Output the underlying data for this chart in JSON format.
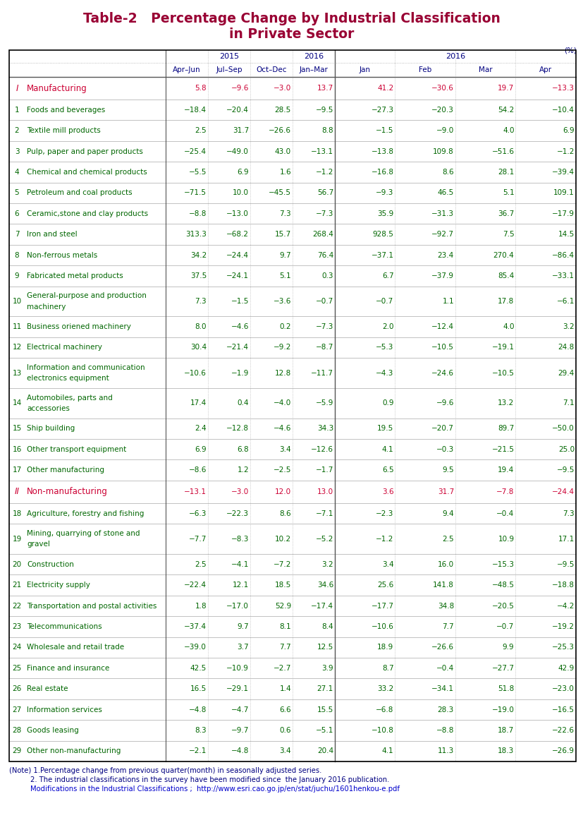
{
  "title_line1": "Table-2   Percentage Change by Industrial Classification",
  "title_line2": "in Private Sector",
  "title_color": "#990033",
  "unit_label": "(%)",
  "col_header_color": "#000080",
  "rows": [
    {
      "num": "I",
      "label": "Manufacturing",
      "values": [
        "5.8",
        "-9.6",
        "-3.0",
        "13.7",
        "41.2",
        "-30.6",
        "19.7",
        "-13.3"
      ],
      "label_color": "#cc0033",
      "value_color": "#cc0033",
      "is_section": true,
      "two_line": false
    },
    {
      "num": "1",
      "label": "Foods and beverages",
      "values": [
        "-18.4",
        "-20.4",
        "28.5",
        "-9.5",
        "-27.3",
        "-20.3",
        "54.2",
        "-10.4"
      ],
      "label_color": "#006600",
      "value_color": "#006600",
      "is_section": false,
      "two_line": false
    },
    {
      "num": "2",
      "label": "Textile mill products",
      "values": [
        "2.5",
        "31.7",
        "-26.6",
        "8.8",
        "-1.5",
        "-9.0",
        "4.0",
        "6.9"
      ],
      "label_color": "#006600",
      "value_color": "#006600",
      "is_section": false,
      "two_line": false
    },
    {
      "num": "3",
      "label": "Pulp, paper and paper products",
      "values": [
        "-25.4",
        "-49.0",
        "43.0",
        "-13.1",
        "-13.8",
        "109.8",
        "-51.6",
        "-1.2"
      ],
      "label_color": "#006600",
      "value_color": "#006600",
      "is_section": false,
      "two_line": false
    },
    {
      "num": "4",
      "label": "Chemical and chemical products",
      "values": [
        "-5.5",
        "6.9",
        "1.6",
        "-1.2",
        "-16.8",
        "8.6",
        "28.1",
        "-39.4"
      ],
      "label_color": "#006600",
      "value_color": "#006600",
      "is_section": false,
      "two_line": false
    },
    {
      "num": "5",
      "label": "Petroleum and coal products",
      "values": [
        "-71.5",
        "10.0",
        "-45.5",
        "56.7",
        "-9.3",
        "46.5",
        "5.1",
        "109.1"
      ],
      "label_color": "#006600",
      "value_color": "#006600",
      "is_section": false,
      "two_line": false
    },
    {
      "num": "6",
      "label": "Ceramic,stone and clay products",
      "values": [
        "-8.8",
        "-13.0",
        "7.3",
        "-7.3",
        "35.9",
        "-31.3",
        "36.7",
        "-17.9"
      ],
      "label_color": "#006600",
      "value_color": "#006600",
      "is_section": false,
      "two_line": false
    },
    {
      "num": "7",
      "label": "Iron and steel",
      "values": [
        "313.3",
        "-68.2",
        "15.7",
        "268.4",
        "928.5",
        "-92.7",
        "7.5",
        "14.5"
      ],
      "label_color": "#006600",
      "value_color": "#006600",
      "is_section": false,
      "two_line": false
    },
    {
      "num": "8",
      "label": "Non-ferrous metals",
      "values": [
        "34.2",
        "-24.4",
        "9.7",
        "76.4",
        "-37.1",
        "23.4",
        "270.4",
        "-86.4"
      ],
      "label_color": "#006600",
      "value_color": "#006600",
      "is_section": false,
      "two_line": false
    },
    {
      "num": "9",
      "label": "Fabricated metal products",
      "values": [
        "37.5",
        "-24.1",
        "5.1",
        "0.3",
        "6.7",
        "-37.9",
        "85.4",
        "-33.1"
      ],
      "label_color": "#006600",
      "value_color": "#006600",
      "is_section": false,
      "two_line": false
    },
    {
      "num": "10",
      "label": "General-purpose and production\nmachinery",
      "values": [
        "7.3",
        "-1.5",
        "-3.6",
        "-0.7",
        "-0.7",
        "1.1",
        "17.8",
        "-6.1"
      ],
      "label_color": "#006600",
      "value_color": "#006600",
      "is_section": false,
      "two_line": true
    },
    {
      "num": "11",
      "label": "Business oriened machinery",
      "values": [
        "8.0",
        "-4.6",
        "0.2",
        "-7.3",
        "2.0",
        "-12.4",
        "4.0",
        "3.2"
      ],
      "label_color": "#006600",
      "value_color": "#006600",
      "is_section": false,
      "two_line": false
    },
    {
      "num": "12",
      "label": "Electrical machinery",
      "values": [
        "30.4",
        "-21.4",
        "-9.2",
        "-8.7",
        "-5.3",
        "-10.5",
        "-19.1",
        "24.8"
      ],
      "label_color": "#006600",
      "value_color": "#006600",
      "is_section": false,
      "two_line": false
    },
    {
      "num": "13",
      "label": "Information and communication\nelectronics equipment",
      "values": [
        "-10.6",
        "-1.9",
        "12.8",
        "-11.7",
        "-4.3",
        "-24.6",
        "-10.5",
        "29.4"
      ],
      "label_color": "#006600",
      "value_color": "#006600",
      "is_section": false,
      "two_line": true
    },
    {
      "num": "14",
      "label": "Automobiles, parts and\naccessories",
      "values": [
        "17.4",
        "0.4",
        "-4.0",
        "-5.9",
        "0.9",
        "-9.6",
        "13.2",
        "7.1"
      ],
      "label_color": "#006600",
      "value_color": "#006600",
      "is_section": false,
      "two_line": true
    },
    {
      "num": "15",
      "label": "Ship building",
      "values": [
        "2.4",
        "-12.8",
        "-4.6",
        "34.3",
        "19.5",
        "-20.7",
        "89.7",
        "-50.0"
      ],
      "label_color": "#006600",
      "value_color": "#006600",
      "is_section": false,
      "two_line": false
    },
    {
      "num": "16",
      "label": "Other transport equipment",
      "values": [
        "6.9",
        "6.8",
        "3.4",
        "-12.6",
        "4.1",
        "-0.3",
        "-21.5",
        "25.0"
      ],
      "label_color": "#006600",
      "value_color": "#006600",
      "is_section": false,
      "two_line": false
    },
    {
      "num": "17",
      "label": "Other manufacturing",
      "values": [
        "-8.6",
        "1.2",
        "-2.5",
        "-1.7",
        "6.5",
        "9.5",
        "19.4",
        "-9.5"
      ],
      "label_color": "#006600",
      "value_color": "#006600",
      "is_section": false,
      "two_line": false
    },
    {
      "num": "II",
      "label": "Non-manufacturing",
      "values": [
        "-13.1",
        "-3.0",
        "12.0",
        "13.0",
        "3.6",
        "31.7",
        "-7.8",
        "-24.4"
      ],
      "label_color": "#cc0033",
      "value_color": "#cc0033",
      "is_section": true,
      "two_line": false
    },
    {
      "num": "18",
      "label": "Agriculture, forestry and fishing",
      "values": [
        "-6.3",
        "-22.3",
        "8.6",
        "-7.1",
        "-2.3",
        "9.4",
        "-0.4",
        "7.3"
      ],
      "label_color": "#006600",
      "value_color": "#006600",
      "is_section": false,
      "two_line": false
    },
    {
      "num": "19",
      "label": "Mining, quarrying of stone and\ngravel",
      "values": [
        "-7.7",
        "-8.3",
        "10.2",
        "-5.2",
        "-1.2",
        "2.5",
        "10.9",
        "17.1"
      ],
      "label_color": "#006600",
      "value_color": "#006600",
      "is_section": false,
      "two_line": true
    },
    {
      "num": "20",
      "label": "Construction",
      "values": [
        "2.5",
        "-4.1",
        "-7.2",
        "3.2",
        "3.4",
        "16.0",
        "-15.3",
        "-9.5"
      ],
      "label_color": "#006600",
      "value_color": "#006600",
      "is_section": false,
      "two_line": false
    },
    {
      "num": "21",
      "label": "Electricity supply",
      "values": [
        "-22.4",
        "12.1",
        "18.5",
        "34.6",
        "25.6",
        "141.8",
        "-48.5",
        "-18.8"
      ],
      "label_color": "#006600",
      "value_color": "#006600",
      "is_section": false,
      "two_line": false
    },
    {
      "num": "22",
      "label": "Transportation and postal activities",
      "values": [
        "1.8",
        "-17.0",
        "52.9",
        "-17.4",
        "-17.7",
        "34.8",
        "-20.5",
        "-4.2"
      ],
      "label_color": "#006600",
      "value_color": "#006600",
      "is_section": false,
      "two_line": false
    },
    {
      "num": "23",
      "label": "Telecommunications",
      "values": [
        "-37.4",
        "9.7",
        "8.1",
        "8.4",
        "-10.6",
        "7.7",
        "-0.7",
        "-19.2"
      ],
      "label_color": "#006600",
      "value_color": "#006600",
      "is_section": false,
      "two_line": false
    },
    {
      "num": "24",
      "label": "Wholesale and retail trade",
      "values": [
        "-39.0",
        "3.7",
        "7.7",
        "12.5",
        "18.9",
        "-26.6",
        "9.9",
        "-25.3"
      ],
      "label_color": "#006600",
      "value_color": "#006600",
      "is_section": false,
      "two_line": false
    },
    {
      "num": "25",
      "label": "Finance and insurance",
      "values": [
        "42.5",
        "-10.9",
        "-2.7",
        "3.9",
        "8.7",
        "-0.4",
        "-27.7",
        "42.9"
      ],
      "label_color": "#006600",
      "value_color": "#006600",
      "is_section": false,
      "two_line": false
    },
    {
      "num": "26",
      "label": "Real estate",
      "values": [
        "16.5",
        "-29.1",
        "1.4",
        "27.1",
        "33.2",
        "-34.1",
        "51.8",
        "-23.0"
      ],
      "label_color": "#006600",
      "value_color": "#006600",
      "is_section": false,
      "two_line": false
    },
    {
      "num": "27",
      "label": "Information services",
      "values": [
        "-4.8",
        "-4.7",
        "6.6",
        "15.5",
        "-6.8",
        "28.3",
        "-19.0",
        "-16.5"
      ],
      "label_color": "#006600",
      "value_color": "#006600",
      "is_section": false,
      "two_line": false
    },
    {
      "num": "28",
      "label": "Goods leasing",
      "values": [
        "8.3",
        "-9.7",
        "0.6",
        "-5.1",
        "-10.8",
        "-8.8",
        "18.7",
        "-22.6"
      ],
      "label_color": "#006600",
      "value_color": "#006600",
      "is_section": false,
      "two_line": false
    },
    {
      "num": "29",
      "label": "Other non-manufacturing",
      "values": [
        "-2.1",
        "-4.8",
        "3.4",
        "20.4",
        "4.1",
        "11.3",
        "18.3",
        "-26.9"
      ],
      "label_color": "#006600",
      "value_color": "#006600",
      "is_section": false,
      "two_line": false
    }
  ],
  "note_lines": [
    "(Note) 1.Percentage change from previous quarter(month) in seasonally adjusted series.",
    "2. The industrial classifications in the survey have been modified since  the January 2016 publication.",
    "Modifications in the Industrial Classifications ;  http://www.esri.cao.go.jp/en/stat/juchu/1601henkou-e.pdf"
  ],
  "note_color": "#000080",
  "note_url_color": "#0000cc",
  "bg_color": "#ffffff",
  "border_color": "#000000"
}
